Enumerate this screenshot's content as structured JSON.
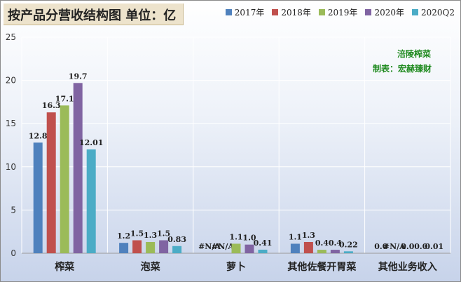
{
  "title": "按产品分营收结构图 单位：亿",
  "watermark": {
    "line1": "涪陵榨菜",
    "line2": "制表：宏赫臻财"
  },
  "colors": {
    "series": [
      "#4f81bd",
      "#c0504d",
      "#9bbb59",
      "#8064a2",
      "#4bacc6"
    ],
    "watermark": "#1f8a1f",
    "grid": "#ffffff"
  },
  "chart_data": {
    "type": "bar",
    "categories": [
      "榨菜",
      "泡菜",
      "萝卜",
      "其他佐餐开胃菜",
      "其他业务收入"
    ],
    "series": [
      {
        "name": "2017年",
        "values": [
          12.8,
          1.2,
          null,
          1.1,
          0.0
        ],
        "labels": [
          "12.8",
          "1.2",
          "#N/A",
          "1.1",
          "0.0"
        ]
      },
      {
        "name": "2018年",
        "values": [
          16.3,
          1.5,
          null,
          1.3,
          null
        ],
        "labels": [
          "16.3",
          "1.5",
          "#N/A",
          "1.3",
          "#N/A"
        ]
      },
      {
        "name": "2019年",
        "values": [
          17.1,
          1.3,
          1.1,
          0.4,
          0.0
        ],
        "labels": [
          "17.1",
          "1.3",
          "1.1",
          "0.4",
          "0.0"
        ]
      },
      {
        "name": "2020年",
        "values": [
          19.7,
          1.5,
          1.0,
          0.4,
          0.0
        ],
        "labels": [
          "19.7",
          "1.5",
          "1.0",
          "0.4",
          "0.0"
        ]
      },
      {
        "name": "2020Q2",
        "values": [
          12.01,
          0.83,
          0.41,
          0.22,
          0.01
        ],
        "labels": [
          "12.01",
          "0.83",
          "0.41",
          "0.22",
          "0.01"
        ]
      }
    ],
    "ylim": [
      0,
      25
    ],
    "yticks": [
      0,
      5,
      10,
      15,
      20,
      25
    ],
    "grid": true,
    "legend_position": "top-right"
  }
}
